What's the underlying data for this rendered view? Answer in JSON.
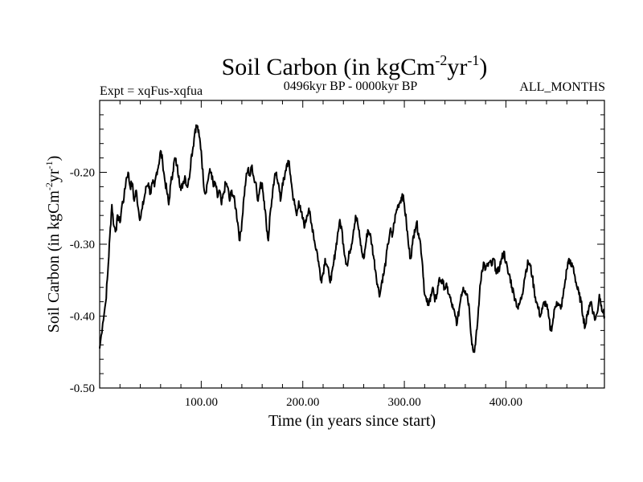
{
  "chart_data": {
    "type": "line",
    "title": {
      "main": "Soil Carbon (in kgCm",
      "sup1": "-2",
      "mid": "yr",
      "sup2": "-1",
      "end": ")"
    },
    "subtitle_left": "Expt = xqFus-xqfua",
    "subtitle_center": "0496kyr BP - 0000kyr BP",
    "subtitle_right": "ALL_MONTHS",
    "xlabel": "Time (in years since start)",
    "ylabel": {
      "main": "Soil Carbon (in kgCm",
      "sup1": "-2",
      "mid": "yr",
      "sup2": "-1",
      "end": ")"
    },
    "xlim": [
      0,
      497
    ],
    "ylim": [
      -0.5,
      -0.1
    ],
    "x_ticks": [
      {
        "value": 100,
        "label": "100.00"
      },
      {
        "value": 200,
        "label": "200.00"
      },
      {
        "value": 300,
        "label": "300.00"
      },
      {
        "value": 400,
        "label": "400.00"
      }
    ],
    "y_ticks": [
      {
        "value": -0.2,
        "label": "-0.20"
      },
      {
        "value": -0.3,
        "label": "-0.30"
      },
      {
        "value": -0.4,
        "label": "-0.40"
      },
      {
        "value": -0.5,
        "label": "-0.50"
      }
    ],
    "series": [
      {
        "name": "Soil Carbon",
        "color": "#000000",
        "points": [
          [
            0,
            -0.445
          ],
          [
            3,
            -0.41
          ],
          [
            6,
            -0.38
          ],
          [
            8,
            -0.34
          ],
          [
            10,
            -0.29
          ],
          [
            12,
            -0.245
          ],
          [
            14,
            -0.275
          ],
          [
            16,
            -0.28
          ],
          [
            18,
            -0.26
          ],
          [
            20,
            -0.27
          ],
          [
            22,
            -0.245
          ],
          [
            24,
            -0.235
          ],
          [
            26,
            -0.21
          ],
          [
            28,
            -0.2
          ],
          [
            30,
            -0.22
          ],
          [
            32,
            -0.215
          ],
          [
            34,
            -0.24
          ],
          [
            36,
            -0.225
          ],
          [
            38,
            -0.25
          ],
          [
            40,
            -0.265
          ],
          [
            42,
            -0.25
          ],
          [
            44,
            -0.235
          ],
          [
            46,
            -0.22
          ],
          [
            48,
            -0.215
          ],
          [
            50,
            -0.23
          ],
          [
            52,
            -0.215
          ],
          [
            54,
            -0.22
          ],
          [
            56,
            -0.2
          ],
          [
            58,
            -0.19
          ],
          [
            60,
            -0.17
          ],
          [
            62,
            -0.185
          ],
          [
            64,
            -0.21
          ],
          [
            66,
            -0.225
          ],
          [
            68,
            -0.245
          ],
          [
            70,
            -0.215
          ],
          [
            72,
            -0.2
          ],
          [
            74,
            -0.18
          ],
          [
            76,
            -0.19
          ],
          [
            78,
            -0.205
          ],
          [
            80,
            -0.225
          ],
          [
            82,
            -0.215
          ],
          [
            84,
            -0.205
          ],
          [
            86,
            -0.22
          ],
          [
            88,
            -0.21
          ],
          [
            90,
            -0.18
          ],
          [
            92,
            -0.165
          ],
          [
            94,
            -0.14
          ],
          [
            96,
            -0.135
          ],
          [
            98,
            -0.15
          ],
          [
            100,
            -0.17
          ],
          [
            102,
            -0.21
          ],
          [
            104,
            -0.23
          ],
          [
            106,
            -0.215
          ],
          [
            108,
            -0.2
          ],
          [
            110,
            -0.2
          ],
          [
            112,
            -0.22
          ],
          [
            114,
            -0.215
          ],
          [
            116,
            -0.235
          ],
          [
            118,
            -0.225
          ],
          [
            120,
            -0.245
          ],
          [
            122,
            -0.23
          ],
          [
            124,
            -0.215
          ],
          [
            126,
            -0.22
          ],
          [
            128,
            -0.24
          ],
          [
            130,
            -0.225
          ],
          [
            132,
            -0.235
          ],
          [
            134,
            -0.25
          ],
          [
            136,
            -0.27
          ],
          [
            138,
            -0.295
          ],
          [
            140,
            -0.27
          ],
          [
            142,
            -0.235
          ],
          [
            144,
            -0.21
          ],
          [
            146,
            -0.195
          ],
          [
            148,
            -0.205
          ],
          [
            150,
            -0.19
          ],
          [
            152,
            -0.21
          ],
          [
            154,
            -0.215
          ],
          [
            156,
            -0.24
          ],
          [
            158,
            -0.22
          ],
          [
            160,
            -0.215
          ],
          [
            162,
            -0.24
          ],
          [
            164,
            -0.27
          ],
          [
            166,
            -0.295
          ],
          [
            168,
            -0.255
          ],
          [
            170,
            -0.235
          ],
          [
            172,
            -0.21
          ],
          [
            174,
            -0.2
          ],
          [
            176,
            -0.215
          ],
          [
            178,
            -0.24
          ],
          [
            180,
            -0.215
          ],
          [
            182,
            -0.21
          ],
          [
            184,
            -0.19
          ],
          [
            186,
            -0.185
          ],
          [
            188,
            -0.205
          ],
          [
            190,
            -0.23
          ],
          [
            192,
            -0.245
          ],
          [
            194,
            -0.26
          ],
          [
            196,
            -0.24
          ],
          [
            198,
            -0.255
          ],
          [
            200,
            -0.265
          ],
          [
            202,
            -0.275
          ],
          [
            204,
            -0.26
          ],
          [
            206,
            -0.25
          ],
          [
            208,
            -0.27
          ],
          [
            210,
            -0.28
          ],
          [
            212,
            -0.3
          ],
          [
            214,
            -0.31
          ],
          [
            216,
            -0.33
          ],
          [
            218,
            -0.35
          ],
          [
            220,
            -0.34
          ],
          [
            222,
            -0.32
          ],
          [
            224,
            -0.33
          ],
          [
            226,
            -0.345
          ],
          [
            228,
            -0.35
          ],
          [
            230,
            -0.33
          ],
          [
            232,
            -0.31
          ],
          [
            234,
            -0.29
          ],
          [
            236,
            -0.27
          ],
          [
            238,
            -0.275
          ],
          [
            240,
            -0.3
          ],
          [
            242,
            -0.32
          ],
          [
            244,
            -0.33
          ],
          [
            246,
            -0.31
          ],
          [
            248,
            -0.3
          ],
          [
            250,
            -0.28
          ],
          [
            252,
            -0.26
          ],
          [
            254,
            -0.27
          ],
          [
            256,
            -0.29
          ],
          [
            258,
            -0.31
          ],
          [
            260,
            -0.32
          ],
          [
            262,
            -0.3
          ],
          [
            264,
            -0.28
          ],
          [
            266,
            -0.285
          ],
          [
            268,
            -0.3
          ],
          [
            270,
            -0.32
          ],
          [
            272,
            -0.34
          ],
          [
            274,
            -0.36
          ],
          [
            276,
            -0.37
          ],
          [
            278,
            -0.35
          ],
          [
            280,
            -0.34
          ],
          [
            282,
            -0.32
          ],
          [
            284,
            -0.3
          ],
          [
            286,
            -0.28
          ],
          [
            288,
            -0.29
          ],
          [
            290,
            -0.27
          ],
          [
            292,
            -0.255
          ],
          [
            294,
            -0.245
          ],
          [
            296,
            -0.24
          ],
          [
            298,
            -0.23
          ],
          [
            300,
            -0.245
          ],
          [
            302,
            -0.27
          ],
          [
            304,
            -0.3
          ],
          [
            306,
            -0.32
          ],
          [
            308,
            -0.3
          ],
          [
            310,
            -0.28
          ],
          [
            312,
            -0.27
          ],
          [
            314,
            -0.285
          ],
          [
            316,
            -0.3
          ],
          [
            318,
            -0.33
          ],
          [
            320,
            -0.37
          ],
          [
            322,
            -0.38
          ],
          [
            324,
            -0.385
          ],
          [
            326,
            -0.37
          ],
          [
            328,
            -0.36
          ],
          [
            330,
            -0.38
          ],
          [
            332,
            -0.37
          ],
          [
            334,
            -0.35
          ],
          [
            336,
            -0.35
          ],
          [
            338,
            -0.355
          ],
          [
            340,
            -0.36
          ],
          [
            342,
            -0.36
          ],
          [
            344,
            -0.37
          ],
          [
            346,
            -0.38
          ],
          [
            348,
            -0.39
          ],
          [
            350,
            -0.4
          ],
          [
            352,
            -0.41
          ],
          [
            354,
            -0.39
          ],
          [
            356,
            -0.37
          ],
          [
            358,
            -0.36
          ],
          [
            360,
            -0.365
          ],
          [
            362,
            -0.37
          ],
          [
            364,
            -0.39
          ],
          [
            366,
            -0.43
          ],
          [
            368,
            -0.45
          ],
          [
            370,
            -0.44
          ],
          [
            372,
            -0.41
          ],
          [
            374,
            -0.37
          ],
          [
            376,
            -0.34
          ],
          [
            378,
            -0.325
          ],
          [
            380,
            -0.335
          ],
          [
            382,
            -0.33
          ],
          [
            384,
            -0.325
          ],
          [
            386,
            -0.33
          ],
          [
            388,
            -0.32
          ],
          [
            390,
            -0.335
          ],
          [
            392,
            -0.34
          ],
          [
            394,
            -0.33
          ],
          [
            396,
            -0.32
          ],
          [
            398,
            -0.31
          ],
          [
            400,
            -0.325
          ],
          [
            402,
            -0.34
          ],
          [
            404,
            -0.345
          ],
          [
            406,
            -0.36
          ],
          [
            408,
            -0.37
          ],
          [
            410,
            -0.38
          ],
          [
            412,
            -0.39
          ],
          [
            414,
            -0.38
          ],
          [
            416,
            -0.37
          ],
          [
            418,
            -0.35
          ],
          [
            420,
            -0.335
          ],
          [
            422,
            -0.325
          ],
          [
            424,
            -0.33
          ],
          [
            426,
            -0.345
          ],
          [
            428,
            -0.365
          ],
          [
            430,
            -0.38
          ],
          [
            432,
            -0.39
          ],
          [
            434,
            -0.4
          ],
          [
            436,
            -0.39
          ],
          [
            438,
            -0.38
          ],
          [
            440,
            -0.385
          ],
          [
            442,
            -0.4
          ],
          [
            444,
            -0.42
          ],
          [
            446,
            -0.41
          ],
          [
            448,
            -0.39
          ],
          [
            450,
            -0.38
          ],
          [
            452,
            -0.385
          ],
          [
            454,
            -0.39
          ],
          [
            456,
            -0.375
          ],
          [
            458,
            -0.355
          ],
          [
            460,
            -0.335
          ],
          [
            462,
            -0.32
          ],
          [
            464,
            -0.33
          ],
          [
            466,
            -0.33
          ],
          [
            468,
            -0.345
          ],
          [
            470,
            -0.36
          ],
          [
            472,
            -0.37
          ],
          [
            474,
            -0.38
          ],
          [
            476,
            -0.4
          ],
          [
            478,
            -0.415
          ],
          [
            480,
            -0.4
          ],
          [
            482,
            -0.385
          ],
          [
            484,
            -0.38
          ],
          [
            486,
            -0.395
          ],
          [
            488,
            -0.405
          ],
          [
            490,
            -0.395
          ],
          [
            492,
            -0.37
          ],
          [
            494,
            -0.385
          ],
          [
            496,
            -0.395
          ],
          [
            497,
            -0.4
          ]
        ]
      }
    ]
  }
}
